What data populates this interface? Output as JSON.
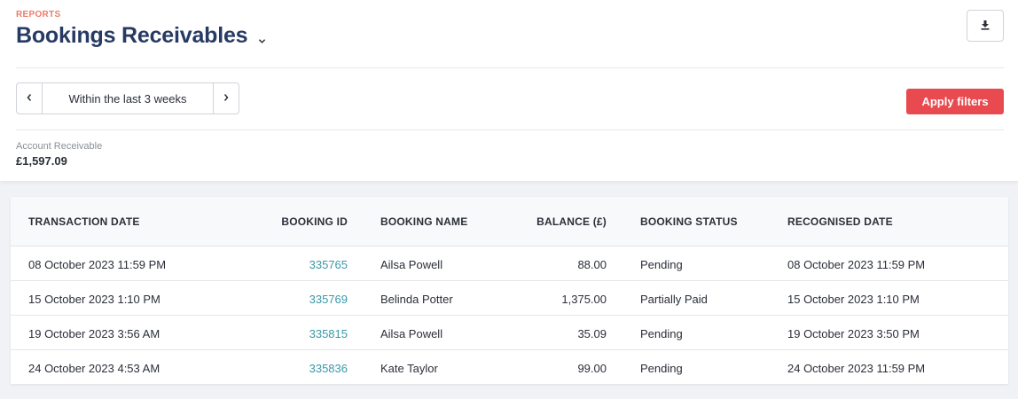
{
  "header": {
    "eyebrow": "REPORTS",
    "title": "Bookings Receivables"
  },
  "filters": {
    "range_label": "Within the last 3 weeks",
    "apply_label": "Apply filters"
  },
  "summary": {
    "label": "Account Receivable",
    "value": "£1,597.09"
  },
  "table": {
    "columns": [
      "TRANSACTION DATE",
      "BOOKING ID",
      "BOOKING NAME",
      "BALANCE (£)",
      "BOOKING STATUS",
      "RECOGNISED DATE"
    ],
    "rows": [
      {
        "transaction_date": "08 October 2023 11:59 PM",
        "booking_id": "335765",
        "booking_name": "Ailsa Powell",
        "balance": "88.00",
        "status": "Pending",
        "recognised_date": "08 October 2023 11:59 PM"
      },
      {
        "transaction_date": "15 October 2023 1:10 PM",
        "booking_id": "335769",
        "booking_name": "Belinda Potter",
        "balance": "1,375.00",
        "status": "Partially Paid",
        "recognised_date": "15 October 2023 1:10 PM"
      },
      {
        "transaction_date": "19 October 2023 3:56 AM",
        "booking_id": "335815",
        "booking_name": "Ailsa Powell",
        "balance": "35.09",
        "status": "Pending",
        "recognised_date": "19 October 2023 3:50 PM"
      },
      {
        "transaction_date": "24 October 2023 4:53 AM",
        "booking_id": "335836",
        "booking_name": "Kate Taylor",
        "balance": "99.00",
        "status": "Pending",
        "recognised_date": "24 October 2023 11:59 PM"
      }
    ]
  },
  "colors": {
    "accent_red": "#e84a4f",
    "title_navy": "#273a64",
    "link_teal": "#3b98a6",
    "eyebrow_coral": "#ef7a6a"
  },
  "icons": {
    "title_dropdown": "chevron-down-icon",
    "download": "download-icon",
    "prev": "chevron-left-icon",
    "next": "chevron-right-icon"
  }
}
